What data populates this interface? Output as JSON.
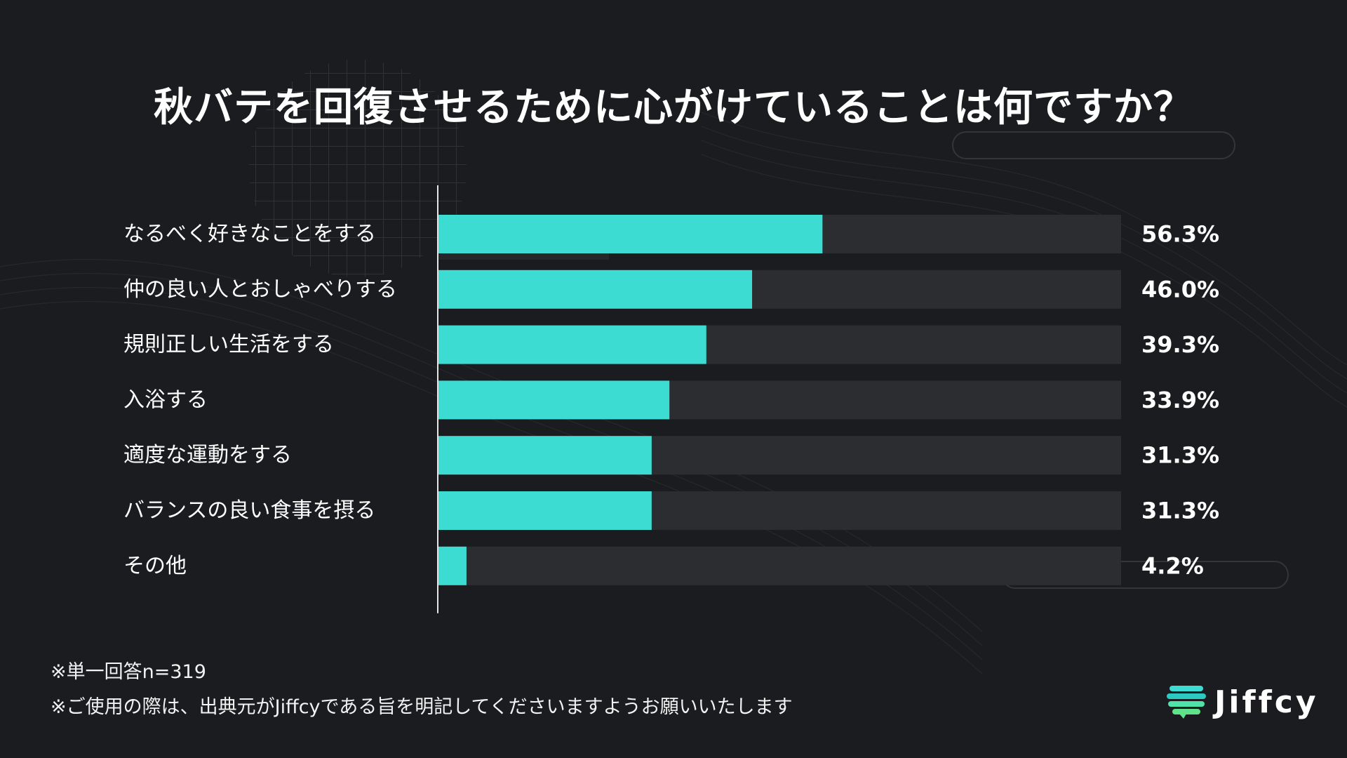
{
  "title": "秋バテを回復させるために心がけていることは何ですか？",
  "notes": {
    "line1": "※単一回答n=319",
    "line2": "※ご使用の際は、出典元がJiffcyである旨を明記してくださいますようお願いいたします"
  },
  "logo": {
    "text": "Jiffcy",
    "icon": "chat-bubble-stack-icon"
  },
  "colors": {
    "background": "#1b1c1f",
    "bar_fill": "#3ddcd3",
    "bar_track": "#2b2d31",
    "text": "#ffffff"
  },
  "chart_data": {
    "type": "bar",
    "orientation": "horizontal",
    "title": "秋バテを回復させるために心がけていることは何ですか？",
    "categories": [
      "なるべく好きなことをする",
      "仲の良い人とおしゃべりする",
      "規則正しい生活をする",
      "入浴する",
      "適度な運動をする",
      "バランスの良い食事を摂る",
      "その他"
    ],
    "values": [
      56.3,
      46.0,
      39.3,
      33.9,
      31.3,
      31.3,
      4.2
    ],
    "value_labels": [
      "56.3%",
      "46.0%",
      "39.3%",
      "33.9%",
      "31.3%",
      "31.3%",
      "4.2%"
    ],
    "xlim": [
      0,
      100
    ],
    "grid": false,
    "legend": "none"
  }
}
